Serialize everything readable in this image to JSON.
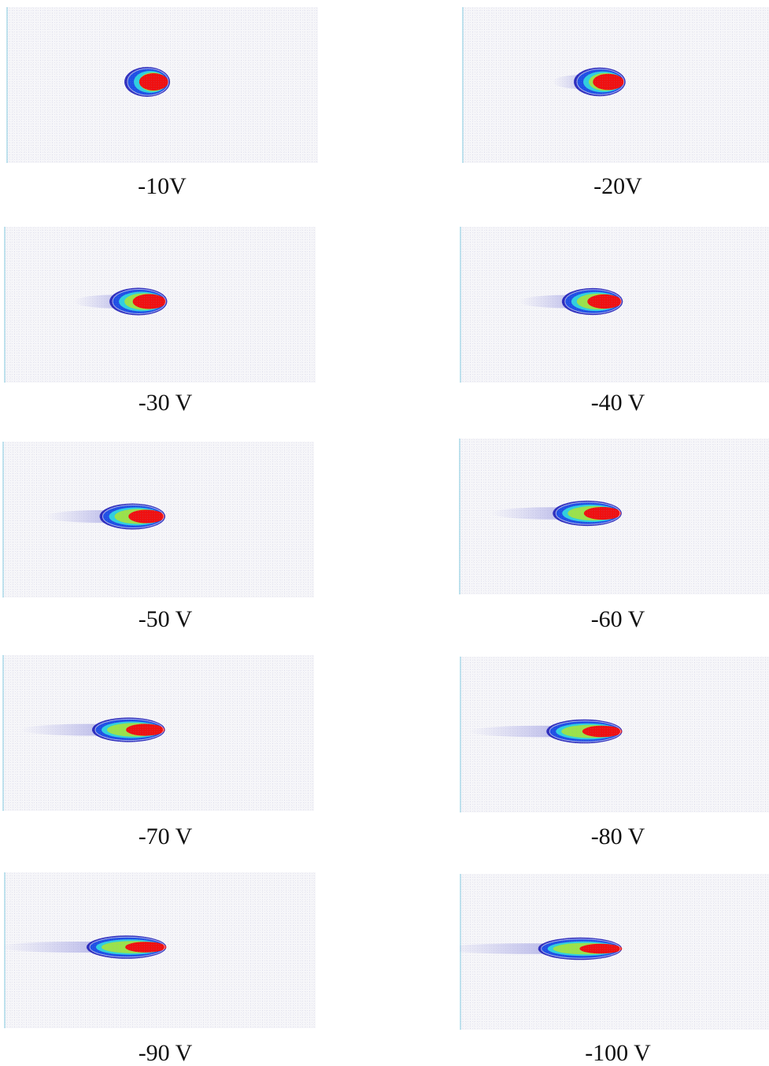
{
  "panels": [
    {
      "label": "-10V",
      "tail": 0.0
    },
    {
      "label": "-20V",
      "tail": 0.15
    },
    {
      "label": "-30 V",
      "tail": 0.3
    },
    {
      "label": "-40 V",
      "tail": 0.38
    },
    {
      "label": "-50 V",
      "tail": 0.5
    },
    {
      "label": "-60 V",
      "tail": 0.58
    },
    {
      "label": "-70 V",
      "tail": 0.68
    },
    {
      "label": "-80 V",
      "tail": 0.75
    },
    {
      "label": "-90 V",
      "tail": 0.85
    },
    {
      "label": "-100 V",
      "tail": 0.95
    }
  ]
}
